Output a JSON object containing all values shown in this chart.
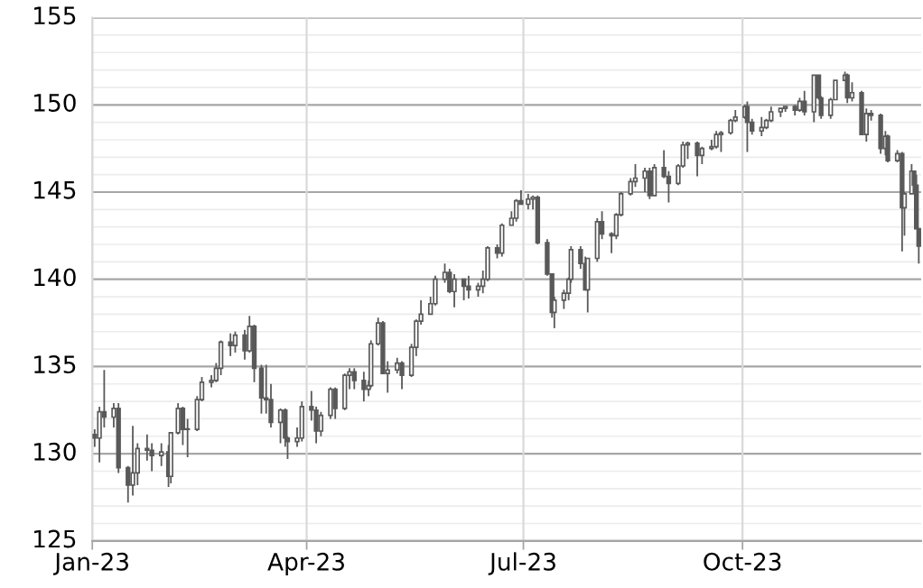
{
  "chart_data": {
    "type": "candlestick",
    "color": "#595959",
    "grid": true,
    "xlim": [
      "2023-01-01",
      "2023-12-15"
    ],
    "xticks": [
      {
        "value": "2023-01-01",
        "label": "Jan-23"
      },
      {
        "value": "2023-04-01",
        "label": "Apr-23"
      },
      {
        "value": "2023-07-01",
        "label": "Jul-23"
      },
      {
        "value": "2023-10-01",
        "label": "Oct-23"
      }
    ],
    "ylim": [
      125,
      155
    ],
    "yticks": [
      125,
      {
        "value": 126,
        "label": null
      },
      {
        "value": 127,
        "label": null
      },
      {
        "value": 128,
        "label": null
      },
      {
        "value": 129,
        "label": null
      },
      130,
      {
        "value": 131,
        "label": null
      },
      {
        "value": 132,
        "label": null
      },
      {
        "value": 133,
        "label": null
      },
      {
        "value": 134,
        "label": null
      },
      135,
      {
        "value": 136,
        "label": null
      },
      {
        "value": 137,
        "label": null
      },
      {
        "value": 138,
        "label": null
      },
      {
        "value": 139,
        "label": null
      },
      140,
      {
        "value": 141,
        "label": null
      },
      {
        "value": 142,
        "label": null
      },
      {
        "value": 143,
        "label": null
      },
      {
        "value": 144,
        "label": null
      },
      145,
      {
        "value": 146,
        "label": null
      },
      {
        "value": 147,
        "label": null
      },
      {
        "value": 148,
        "label": null
      },
      {
        "value": 149,
        "label": null
      },
      150,
      {
        "value": 151,
        "label": null
      },
      {
        "value": 152,
        "label": null
      },
      {
        "value": 153,
        "label": null
      },
      {
        "value": 154,
        "label": null
      },
      155
    ],
    "x": [
      "2023-01-02",
      "2023-01-04",
      "2023-01-06",
      "2023-01-10",
      "2023-01-12",
      "2023-01-16",
      "2023-01-18",
      "2023-01-20",
      "2023-01-24",
      "2023-01-26",
      "2023-01-30",
      "2023-02-02",
      "2023-02-03",
      "2023-02-06",
      "2023-02-08",
      "2023-02-10",
      "2023-02-14",
      "2023-02-16",
      "2023-02-20",
      "2023-02-22",
      "2023-02-24",
      "2023-02-28",
      "2023-03-02",
      "2023-03-06",
      "2023-03-08",
      "2023-03-10",
      "2023-03-13",
      "2023-03-15",
      "2023-03-17",
      "2023-03-21",
      "2023-03-23",
      "2023-03-24",
      "2023-03-28",
      "2023-03-30",
      "2023-04-03",
      "2023-04-05",
      "2023-04-07",
      "2023-04-11",
      "2023-04-13",
      "2023-04-17",
      "2023-04-19",
      "2023-04-21",
      "2023-04-25",
      "2023-04-27",
      "2023-04-28",
      "2023-05-01",
      "2023-05-03",
      "2023-05-05",
      "2023-05-09",
      "2023-05-11",
      "2023-05-15",
      "2023-05-17",
      "2023-05-19",
      "2023-05-23",
      "2023-05-25",
      "2023-05-29",
      "2023-05-31",
      "2023-06-02",
      "2023-06-06",
      "2023-06-08",
      "2023-06-12",
      "2023-06-14",
      "2023-06-16",
      "2023-06-20",
      "2023-06-22",
      "2023-06-26",
      "2023-06-28",
      "2023-06-30",
      "2023-07-03",
      "2023-07-05",
      "2023-07-07",
      "2023-07-11",
      "2023-07-13",
      "2023-07-14",
      "2023-07-18",
      "2023-07-20",
      "2023-07-21",
      "2023-07-25",
      "2023-07-27",
      "2023-07-28",
      "2023-08-01",
      "2023-08-03",
      "2023-08-07",
      "2023-08-09",
      "2023-08-11",
      "2023-08-15",
      "2023-08-17",
      "2023-08-21",
      "2023-08-23",
      "2023-08-25",
      "2023-08-29",
      "2023-08-31",
      "2023-09-04",
      "2023-09-06",
      "2023-09-08",
      "2023-09-12",
      "2023-09-14",
      "2023-09-18",
      "2023-09-20",
      "2023-09-22",
      "2023-09-26",
      "2023-09-28",
      "2023-10-02",
      "2023-10-03",
      "2023-10-05",
      "2023-10-09",
      "2023-10-11",
      "2023-10-13",
      "2023-10-17",
      "2023-10-19",
      "2023-10-23",
      "2023-10-25",
      "2023-10-27",
      "2023-10-31",
      "2023-11-02",
      "2023-11-03",
      "2023-11-07",
      "2023-11-09",
      "2023-11-13",
      "2023-11-14",
      "2023-11-16",
      "2023-11-20",
      "2023-11-22",
      "2023-11-24",
      "2023-11-28",
      "2023-11-30",
      "2023-12-01",
      "2023-12-05",
      "2023-12-07",
      "2023-12-08",
      "2023-12-11",
      "2023-12-12",
      "2023-12-13",
      "2023-12-14"
    ],
    "ohlc": [
      [
        131.1,
        131.4,
        130.4,
        130.9
      ],
      [
        130.9,
        132.7,
        129.5,
        132.4
      ],
      [
        132.4,
        134.8,
        131.5,
        132.1
      ],
      [
        132.1,
        132.9,
        131.5,
        132.6
      ],
      [
        132.6,
        132.9,
        128.9,
        129.2
      ],
      [
        129.2,
        129.3,
        127.2,
        128.2
      ],
      [
        128.2,
        131.6,
        127.6,
        128.9
      ],
      [
        128.9,
        130.6,
        128.2,
        130.3
      ],
      [
        130.3,
        131.1,
        129.6,
        130.2
      ],
      [
        130.2,
        130.6,
        129.0,
        129.9
      ],
      [
        129.9,
        130.6,
        129.3,
        130.1
      ],
      [
        130.1,
        130.5,
        128.1,
        128.7
      ],
      [
        128.7,
        131.2,
        128.3,
        131.2
      ],
      [
        131.2,
        132.9,
        131.1,
        132.6
      ],
      [
        132.6,
        132.7,
        130.5,
        131.4
      ],
      [
        131.4,
        132.0,
        129.8,
        131.4
      ],
      [
        131.4,
        133.3,
        131.3,
        133.1
      ],
      [
        133.1,
        134.4,
        133.0,
        134.1
      ],
      [
        134.1,
        134.5,
        133.8,
        134.2
      ],
      [
        134.2,
        135.2,
        134.1,
        134.9
      ],
      [
        134.9,
        136.5,
        134.5,
        136.4
      ],
      [
        136.4,
        136.9,
        135.6,
        136.2
      ],
      [
        136.2,
        137.0,
        135.8,
        136.8
      ],
      [
        136.8,
        137.1,
        135.4,
        135.9
      ],
      [
        135.9,
        137.9,
        135.8,
        137.3
      ],
      [
        137.3,
        137.4,
        134.1,
        134.9
      ],
      [
        134.9,
        135.1,
        132.3,
        133.2
      ],
      [
        133.2,
        135.1,
        132.3,
        133.1
      ],
      [
        133.1,
        134.0,
        131.5,
        131.8
      ],
      [
        131.8,
        132.6,
        130.6,
        132.5
      ],
      [
        132.5,
        132.6,
        130.4,
        130.9
      ],
      [
        130.9,
        131.0,
        129.7,
        130.7
      ],
      [
        130.7,
        131.5,
        130.4,
        130.9
      ],
      [
        130.9,
        133.0,
        130.7,
        132.7
      ],
      [
        132.7,
        133.6,
        131.9,
        132.5
      ],
      [
        132.5,
        132.7,
        130.6,
        131.3
      ],
      [
        131.3,
        132.4,
        131.0,
        132.2
      ],
      [
        132.2,
        133.8,
        132.0,
        133.7
      ],
      [
        133.7,
        133.8,
        132.0,
        132.6
      ],
      [
        132.6,
        134.6,
        132.5,
        134.5
      ],
      [
        134.5,
        134.9,
        133.7,
        134.7
      ],
      [
        134.7,
        134.9,
        133.7,
        134.2
      ],
      [
        134.2,
        134.7,
        133.0,
        133.7
      ],
      [
        133.7,
        134.2,
        133.3,
        133.9
      ],
      [
        133.9,
        136.5,
        133.8,
        136.3
      ],
      [
        136.3,
        137.8,
        136.2,
        137.5
      ],
      [
        137.5,
        137.6,
        134.6,
        134.6
      ],
      [
        134.6,
        135.3,
        133.5,
        134.8
      ],
      [
        134.8,
        135.5,
        134.6,
        135.2
      ],
      [
        135.2,
        135.3,
        133.7,
        134.5
      ],
      [
        134.5,
        136.3,
        134.4,
        136.1
      ],
      [
        136.1,
        137.7,
        135.6,
        137.6
      ],
      [
        137.6,
        138.8,
        137.4,
        138.0
      ],
      [
        138.0,
        139.0,
        138.0,
        138.6
      ],
      [
        138.6,
        140.2,
        138.5,
        140.0
      ],
      [
        140.0,
        140.9,
        139.8,
        140.4
      ],
      [
        140.4,
        140.6,
        139.2,
        139.3
      ],
      [
        139.3,
        140.3,
        138.4,
        140.0
      ],
      [
        140.0,
        140.0,
        138.8,
        139.6
      ],
      [
        139.6,
        140.2,
        138.9,
        139.4
      ],
      [
        139.4,
        139.8,
        139.0,
        139.6
      ],
      [
        139.6,
        140.5,
        139.2,
        140.0
      ],
      [
        140.0,
        141.9,
        139.9,
        141.8
      ],
      [
        141.8,
        142.0,
        141.2,
        141.5
      ],
      [
        141.5,
        143.2,
        141.3,
        143.1
      ],
      [
        143.1,
        143.9,
        143.1,
        143.5
      ],
      [
        143.5,
        144.6,
        143.3,
        144.5
      ],
      [
        144.5,
        145.1,
        144.3,
        144.3
      ],
      [
        144.3,
        144.9,
        144.0,
        144.6
      ],
      [
        144.6,
        144.8,
        144.0,
        144.7
      ],
      [
        144.7,
        144.8,
        142.0,
        142.1
      ],
      [
        142.1,
        142.3,
        140.2,
        140.3
      ],
      [
        140.3,
        140.3,
        137.8,
        138.1
      ],
      [
        138.1,
        139.0,
        137.2,
        138.8
      ],
      [
        138.8,
        139.4,
        138.3,
        139.2
      ],
      [
        139.2,
        140.1,
        138.8,
        140.0
      ],
      [
        140.0,
        141.9,
        139.8,
        141.7
      ],
      [
        141.7,
        141.9,
        140.6,
        140.9
      ],
      [
        140.9,
        141.3,
        139.4,
        139.4
      ],
      [
        139.4,
        141.2,
        138.1,
        141.2
      ],
      [
        141.2,
        143.5,
        141.0,
        143.3
      ],
      [
        143.3,
        143.9,
        142.3,
        142.6
      ],
      [
        142.6,
        142.7,
        141.5,
        142.5
      ],
      [
        142.5,
        143.8,
        142.3,
        143.7
      ],
      [
        143.7,
        145.0,
        143.6,
        144.9
      ],
      [
        144.9,
        145.8,
        144.8,
        145.6
      ],
      [
        145.6,
        146.6,
        145.3,
        145.8
      ],
      [
        145.8,
        146.4,
        145.0,
        146.2
      ],
      [
        146.2,
        146.4,
        144.6,
        144.8
      ],
      [
        144.8,
        146.6,
        144.8,
        146.4
      ],
      [
        146.4,
        147.4,
        145.8,
        145.9
      ],
      [
        145.9,
        146.2,
        144.4,
        145.5
      ],
      [
        145.5,
        146.6,
        145.4,
        146.5
      ],
      [
        146.5,
        147.9,
        146.4,
        147.7
      ],
      [
        147.7,
        147.9,
        146.9,
        147.8
      ],
      [
        147.8,
        147.9,
        145.9,
        147.1
      ],
      [
        147.1,
        147.6,
        146.6,
        147.5
      ],
      [
        147.5,
        148.0,
        147.4,
        147.6
      ],
      [
        147.6,
        148.5,
        147.5,
        148.3
      ],
      [
        148.3,
        148.5,
        147.3,
        148.4
      ],
      [
        148.4,
        149.2,
        148.3,
        149.1
      ],
      [
        149.1,
        149.7,
        149.0,
        149.3
      ],
      [
        149.3,
        150.0,
        149.2,
        149.9
      ],
      [
        149.9,
        150.2,
        147.3,
        149.0
      ],
      [
        149.0,
        149.2,
        148.3,
        148.5
      ],
      [
        148.5,
        149.3,
        148.2,
        148.7
      ],
      [
        148.7,
        149.2,
        148.6,
        149.1
      ],
      [
        149.1,
        149.9,
        149.0,
        149.6
      ],
      [
        149.6,
        149.8,
        149.3,
        149.8
      ],
      [
        149.8,
        149.9,
        149.6,
        149.9
      ],
      [
        149.9,
        150.0,
        149.4,
        149.7
      ],
      [
        149.7,
        150.4,
        149.6,
        150.2
      ],
      [
        150.2,
        150.8,
        149.4,
        149.6
      ],
      [
        149.6,
        151.7,
        149.0,
        151.7
      ],
      [
        151.7,
        151.7,
        150.3,
        150.4
      ],
      [
        150.4,
        150.5,
        149.2,
        149.4
      ],
      [
        149.4,
        150.4,
        149.2,
        150.3
      ],
      [
        150.3,
        151.4,
        150.3,
        151.4
      ],
      [
        151.4,
        151.9,
        151.4,
        151.7
      ],
      [
        151.7,
        151.8,
        150.1,
        150.4
      ],
      [
        150.4,
        151.3,
        150.2,
        150.7
      ],
      [
        150.7,
        150.8,
        148.3,
        148.3
      ],
      [
        148.3,
        149.8,
        147.9,
        149.5
      ],
      [
        149.5,
        149.7,
        149.1,
        149.4
      ],
      [
        149.4,
        149.5,
        147.2,
        147.5
      ],
      [
        147.5,
        148.5,
        147.1,
        148.2
      ],
      [
        148.2,
        148.3,
        146.7,
        146.8
      ],
      [
        146.8,
        147.4,
        146.7,
        147.2
      ],
      [
        147.2,
        147.3,
        141.6,
        144.1
      ],
      [
        144.1,
        145.0,
        142.5,
        144.9
      ],
      [
        144.9,
        146.6,
        144.9,
        146.2
      ],
      [
        146.2,
        146.2,
        144.9,
        145.4
      ],
      [
        145.4,
        146.0,
        142.9,
        142.9
      ],
      [
        142.9,
        142.9,
        140.9,
        141.9
      ]
    ]
  }
}
